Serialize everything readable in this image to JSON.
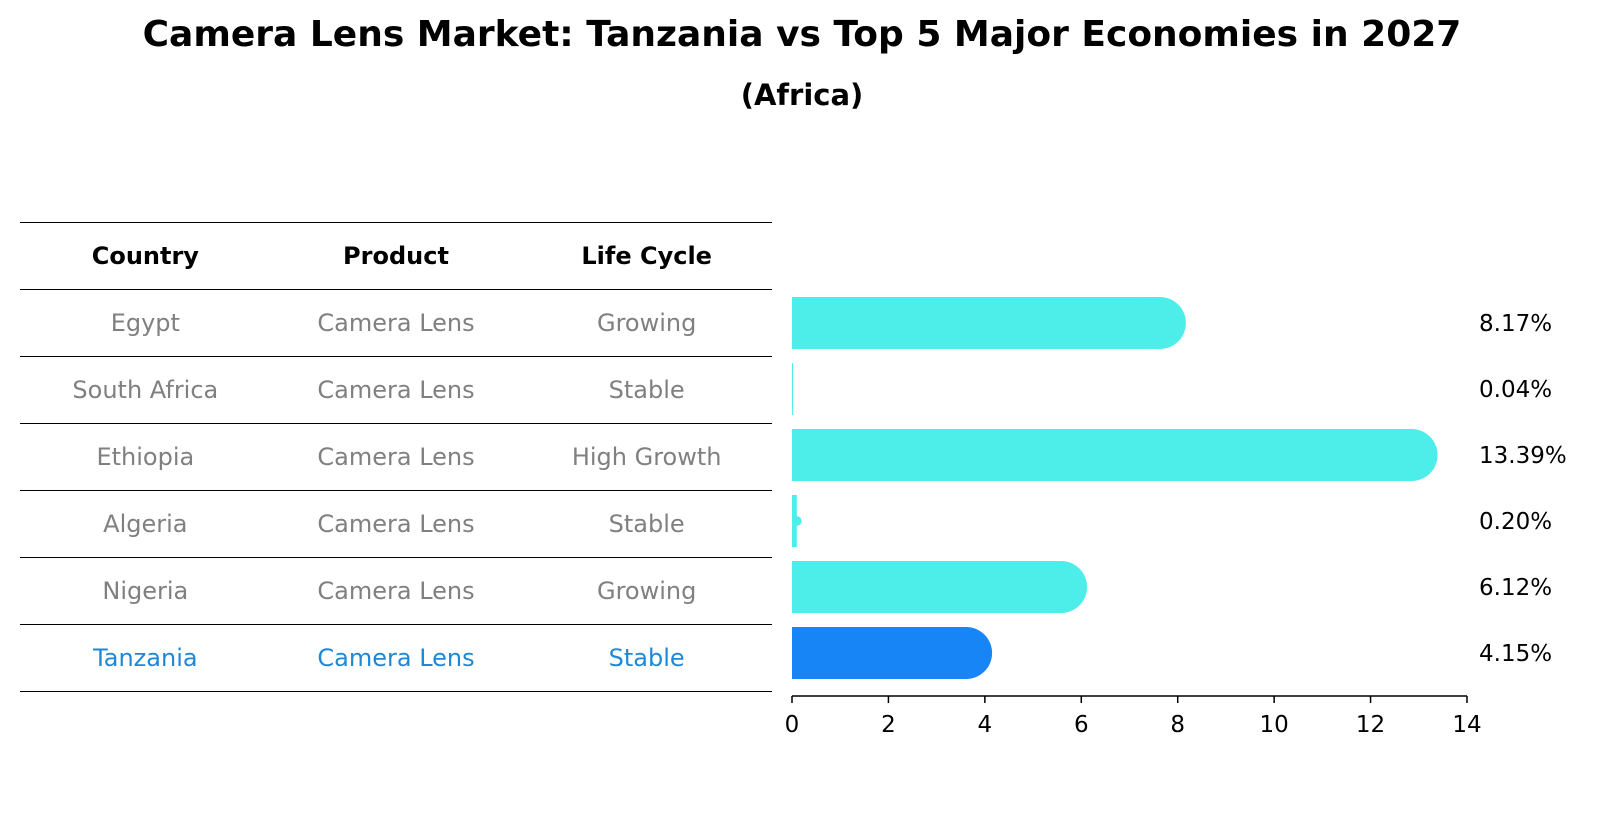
{
  "title": "Camera Lens Market: Tanzania vs Top 5 Major Economies in 2027",
  "subtitle": "(Africa)",
  "table": {
    "headers": [
      "Country",
      "Product",
      "Life Cycle"
    ],
    "rows": [
      {
        "country": "Egypt",
        "product": "Camera Lens",
        "life_cycle": "Growing"
      },
      {
        "country": "South Africa",
        "product": "Camera Lens",
        "life_cycle": "Stable"
      },
      {
        "country": "Ethiopia",
        "product": "Camera Lens",
        "life_cycle": "High Growth"
      },
      {
        "country": "Algeria",
        "product": "Camera Lens",
        "life_cycle": "Stable"
      },
      {
        "country": "Nigeria",
        "product": "Camera Lens",
        "life_cycle": "Growing"
      },
      {
        "country": "Tanzania",
        "product": "Camera Lens",
        "life_cycle": "Stable"
      }
    ]
  },
  "colors": {
    "bar": "#4deeea",
    "highlight_bar": "#1785f5",
    "highlight_text": "#1e88d8",
    "muted_text": "#808080"
  },
  "chart_data": {
    "type": "bar",
    "orientation": "horizontal",
    "categories": [
      "Egypt",
      "South Africa",
      "Ethiopia",
      "Algeria",
      "Nigeria",
      "Tanzania"
    ],
    "values": [
      8.17,
      0.04,
      13.39,
      0.2,
      6.12,
      4.15
    ],
    "value_labels": [
      "8.17%",
      "0.04%",
      "13.39%",
      "0.20%",
      "6.12%",
      "4.15%"
    ],
    "highlight": "Tanzania",
    "xlim": [
      0,
      14
    ],
    "xticks": [
      0,
      2,
      4,
      6,
      8,
      10,
      12,
      14
    ],
    "xlabel": "",
    "ylabel": "",
    "grid": false
  }
}
